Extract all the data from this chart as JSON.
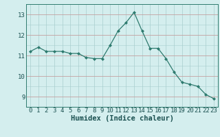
{
  "x": [
    0,
    1,
    2,
    3,
    4,
    5,
    6,
    7,
    8,
    9,
    10,
    11,
    12,
    13,
    14,
    15,
    16,
    17,
    18,
    19,
    20,
    21,
    22,
    23
  ],
  "y": [
    11.2,
    11.4,
    11.2,
    11.2,
    11.2,
    11.1,
    11.1,
    10.9,
    10.85,
    10.85,
    11.5,
    12.2,
    12.6,
    13.1,
    12.2,
    11.35,
    11.35,
    10.85,
    10.2,
    9.7,
    9.6,
    9.5,
    9.1,
    8.9
  ],
  "xlim": [
    -0.5,
    23.5
  ],
  "ylim": [
    8.5,
    13.5
  ],
  "yticks": [
    9,
    10,
    11,
    12,
    13
  ],
  "xticks": [
    0,
    1,
    2,
    3,
    4,
    5,
    6,
    7,
    8,
    9,
    10,
    11,
    12,
    13,
    14,
    15,
    16,
    17,
    18,
    19,
    20,
    21,
    22,
    23
  ],
  "xlabel": "Humidex (Indice chaleur)",
  "line_color": "#2d7a6e",
  "marker": "D",
  "marker_size": 2.0,
  "bg_color": "#d4eeee",
  "grid_color_minor": "#a8cece",
  "grid_color_major_y": "#c4a0a0",
  "grid_color_major_x": "#a8cece",
  "xlabel_fontsize": 7.5,
  "tick_fontsize": 6.5
}
